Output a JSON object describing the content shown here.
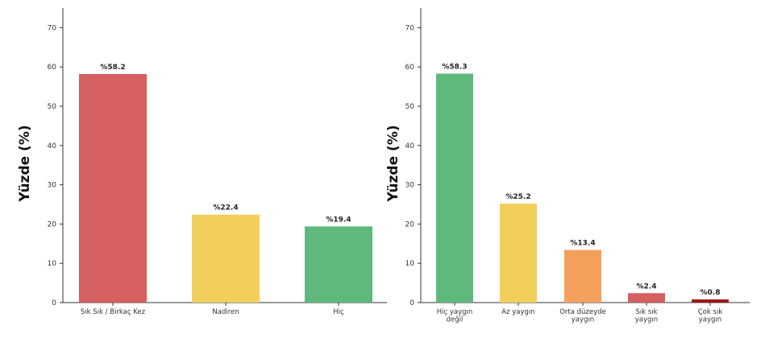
{
  "chart_data": [
    {
      "type": "bar",
      "ylabel": "Yüzde (%)",
      "ylim": [
        0,
        75
      ],
      "yticks": [
        0,
        10,
        20,
        30,
        40,
        50,
        60,
        70
      ],
      "grid": false,
      "categories": [
        [
          "Sık Sık / Birkaç Kez"
        ],
        [
          "Nadiren"
        ],
        [
          "Hiç"
        ]
      ],
      "values": [
        58.2,
        22.4,
        19.4
      ],
      "value_labels": [
        "%58.2",
        "%22.4",
        "%19.4"
      ],
      "colors": [
        "#d65f5f",
        "#f2cf5b",
        "#5fb97c"
      ]
    },
    {
      "type": "bar",
      "ylabel": "Yüzde (%)",
      "ylim": [
        0,
        75
      ],
      "yticks": [
        0,
        10,
        20,
        30,
        40,
        50,
        60,
        70
      ],
      "grid": false,
      "categories": [
        [
          "Hiç yaygın",
          "değil"
        ],
        [
          "Az yaygın"
        ],
        [
          "Orta düzeyde",
          "yaygın"
        ],
        [
          "Sık sık",
          "yaygın"
        ],
        [
          "Çok sık",
          "yaygın"
        ]
      ],
      "values": [
        58.3,
        25.2,
        13.4,
        2.4,
        0.8
      ],
      "value_labels": [
        "%58.3",
        "%25.2",
        "%13.4",
        "%2.4",
        "%0.8"
      ],
      "colors": [
        "#5fb97c",
        "#f2cf5b",
        "#f2a05c",
        "#d65f5f",
        "#a01616"
      ]
    }
  ]
}
